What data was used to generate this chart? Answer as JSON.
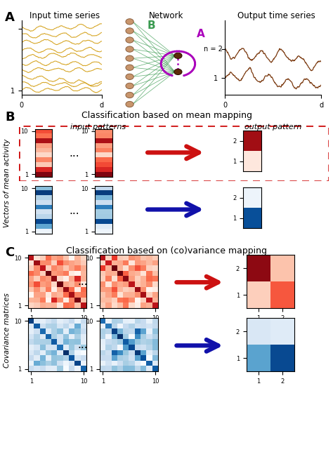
{
  "label_input": "Input time series",
  "label_network": "Network",
  "label_output": "Output time series",
  "label_mean_mapping": "Classification based on mean mapping",
  "label_cov_mapping": "Classification based on (co)variance mapping",
  "label_input_patterns": "input patterns",
  "label_output_pattern": "output pattern",
  "label_vectors": "Vectors of mean activity",
  "label_cov_matrices": "Covariance matrices",
  "color_gold": "#D4A017",
  "color_green": "#3A9A50",
  "color_purple": "#AA00BB",
  "color_brown": "#7B3A10",
  "color_neuron": "#C8956C",
  "color_neuron_edge": "#8B6040",
  "color_output_neuron": "#5C2A08",
  "color_red_arrow": "#CC1111",
  "color_blue_arrow": "#1111AA",
  "background": "#ffffff"
}
